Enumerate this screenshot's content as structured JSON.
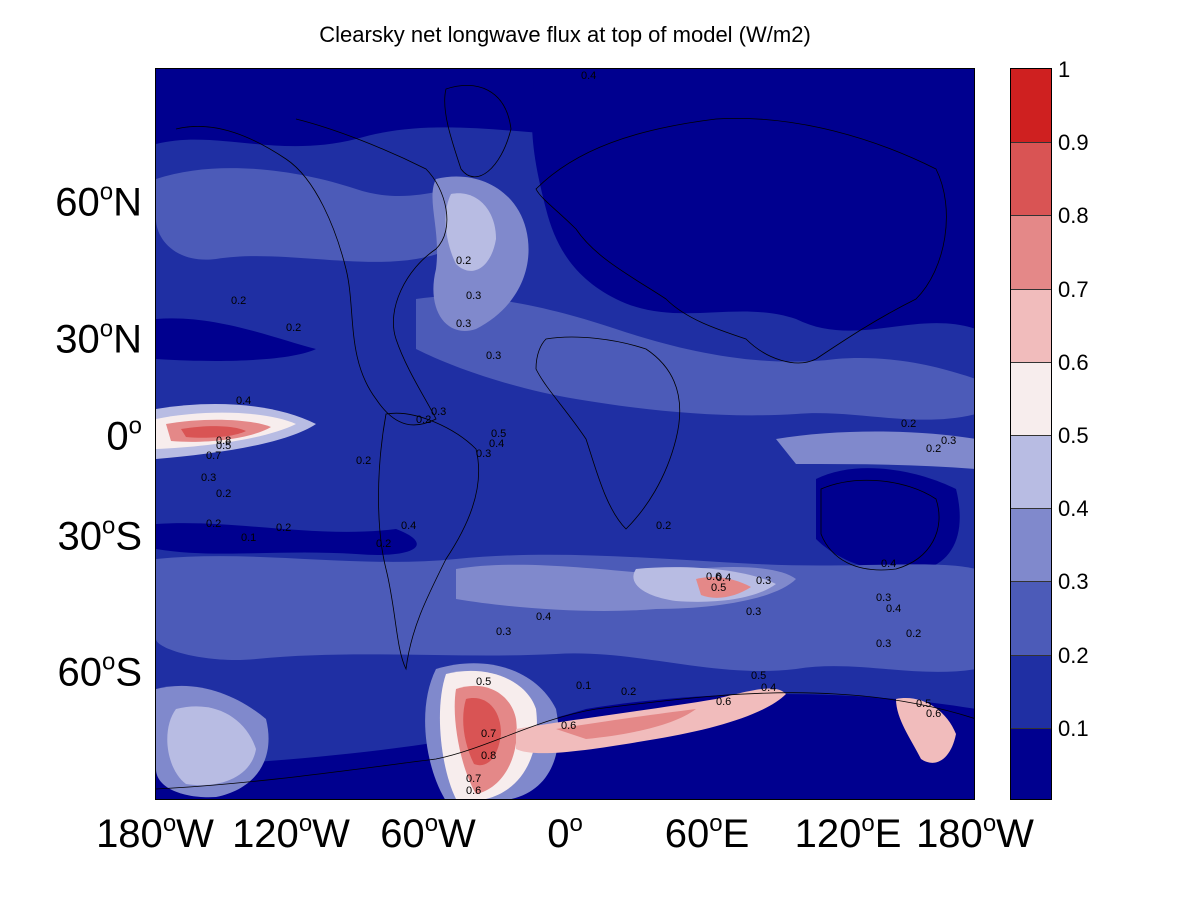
{
  "title": "Clearsky net longwave flux at top of model (W/m2)",
  "colors": {
    "levels": [
      "#00008f",
      "#1f2fa3",
      "#4c5bb8",
      "#8089cc",
      "#b8bce3",
      "#f7eded",
      "#f1bcbc",
      "#e48888",
      "#d95454",
      "#cf2020"
    ],
    "background": "#ffffff"
  },
  "axes": {
    "y_ticks": [
      {
        "deg": "60",
        "hem": "N"
      },
      {
        "deg": "30",
        "hem": "N"
      },
      {
        "deg": "0",
        "hem": ""
      },
      {
        "deg": "30",
        "hem": "S"
      },
      {
        "deg": "60",
        "hem": "S"
      }
    ],
    "x_ticks": [
      {
        "deg": "180",
        "hem": "W"
      },
      {
        "deg": "120",
        "hem": "W"
      },
      {
        "deg": "60",
        "hem": "W"
      },
      {
        "deg": "0",
        "hem": ""
      },
      {
        "deg": "60",
        "hem": "E"
      },
      {
        "deg": "120",
        "hem": "E"
      },
      {
        "deg": "180",
        "hem": "W"
      }
    ],
    "degree_symbol": "o"
  },
  "colorbar": {
    "labels": [
      "1",
      "0.9",
      "0.8",
      "0.7",
      "0.6",
      "0.5",
      "0.4",
      "0.3",
      "0.2",
      "0.1"
    ],
    "range": [
      0,
      1
    ]
  },
  "contour_labels": [
    {
      "text": "0.4"
    },
    {
      "text": "0.3"
    },
    {
      "text": "0.2"
    },
    {
      "text": "0.2"
    },
    {
      "text": "0.2"
    },
    {
      "text": "0.3"
    },
    {
      "text": "0.3"
    },
    {
      "text": "0.4"
    },
    {
      "text": "0.8"
    },
    {
      "text": "0.7"
    },
    {
      "text": "0.5"
    },
    {
      "text": "0.3"
    },
    {
      "text": "0.2"
    },
    {
      "text": "0.2"
    },
    {
      "text": "0.1"
    },
    {
      "text": "0.5"
    },
    {
      "text": "0.4"
    },
    {
      "text": "0.3"
    },
    {
      "text": "0.3"
    },
    {
      "text": "0.2"
    },
    {
      "text": "0.2"
    },
    {
      "text": "0.4"
    },
    {
      "text": "0.2"
    },
    {
      "text": "0.4"
    },
    {
      "text": "0.3"
    },
    {
      "text": "0.2"
    },
    {
      "text": "0.6"
    },
    {
      "text": "0.5"
    },
    {
      "text": "0.4"
    },
    {
      "text": "0.3"
    },
    {
      "text": "0.3"
    },
    {
      "text": "0.5"
    },
    {
      "text": "0.7"
    },
    {
      "text": "0.8"
    },
    {
      "text": "0.6"
    },
    {
      "text": "0.7"
    },
    {
      "text": "0.6"
    },
    {
      "text": "0.1"
    },
    {
      "text": "0.2"
    },
    {
      "text": "0.6"
    },
    {
      "text": "0.4"
    },
    {
      "text": "0.5"
    },
    {
      "text": "0.4"
    },
    {
      "text": "0.3"
    },
    {
      "text": "0.2"
    },
    {
      "text": "0.2"
    },
    {
      "text": "0.4"
    },
    {
      "text": "0.3"
    },
    {
      "text": "0.2"
    },
    {
      "text": "0.3"
    },
    {
      "text": "0.6"
    },
    {
      "text": "0.5"
    },
    {
      "text": "0.2"
    }
  ]
}
